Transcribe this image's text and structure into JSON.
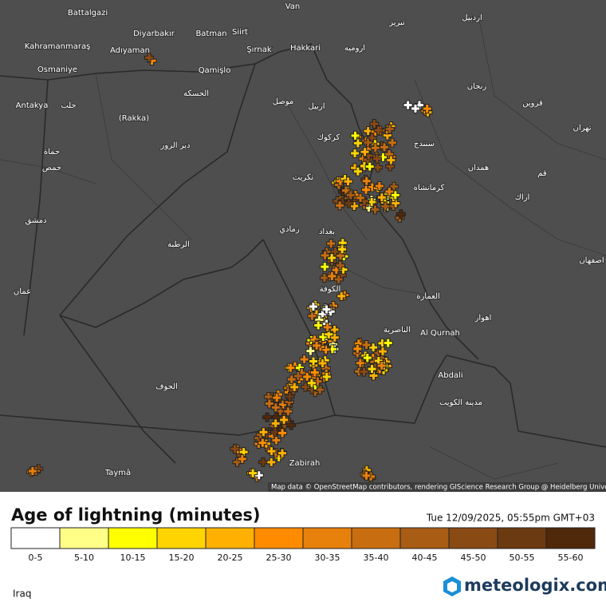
{
  "map": {
    "place_labels": [
      "Van",
      "Battalgazi",
      "Diyarbakır",
      "Batman",
      "Siirt",
      "Kahramanmaraş",
      "Adıyaman",
      "Şırnak",
      "Hakkari",
      "Osmaniye",
      "Qamişlo",
      "Antakya",
      "حلب",
      "(Rakka)",
      "الحسكة",
      "موصل",
      "اربيل",
      "دير الزور",
      "حماة",
      "حمص",
      "كركوك",
      "تكريت",
      "كرمانشاه",
      "سنندج",
      "همدان",
      "تهران",
      "قم",
      "اراك",
      "رمادي",
      "بغداد",
      "الرطبة",
      "دمشق",
      "عمان",
      "الكوفة",
      "العمارة",
      "الناصرية",
      "Al Qurnah",
      "اهواز",
      "Abdali",
      "مدينة الكويت",
      "الجوف",
      "Zabirah",
      "Taymā",
      "زنجان",
      "تبريز",
      "اردبيل",
      "اروميه",
      "قزوين",
      "اصفهان"
    ],
    "attribution": "Map data © OpenStreetMap contributors, rendering GIScience Research Group @ Heidelberg University"
  },
  "legend": {
    "title": "Age of lightning (minutes)",
    "timestamp": "Tue 12/09/2025, 05:55pm GMT+03",
    "bins": [
      {
        "label": "0-5",
        "color": "#ffffff"
      },
      {
        "label": "5-10",
        "color": "#ffff88"
      },
      {
        "label": "10-15",
        "color": "#ffff00"
      },
      {
        "label": "15-20",
        "color": "#ffd400"
      },
      {
        "label": "20-25",
        "color": "#ffb000"
      },
      {
        "label": "25-30",
        "color": "#ff8c00"
      },
      {
        "label": "30-35",
        "color": "#e8800c"
      },
      {
        "label": "35-40",
        "color": "#c86e10"
      },
      {
        "label": "40-45",
        "color": "#a85c14"
      },
      {
        "label": "45-50",
        "color": "#8a4a14"
      },
      {
        "label": "50-55",
        "color": "#6c3a10"
      },
      {
        "label": "55-60",
        "color": "#50280a"
      }
    ]
  },
  "region": "Iraq",
  "brand": "meteologix.com"
}
